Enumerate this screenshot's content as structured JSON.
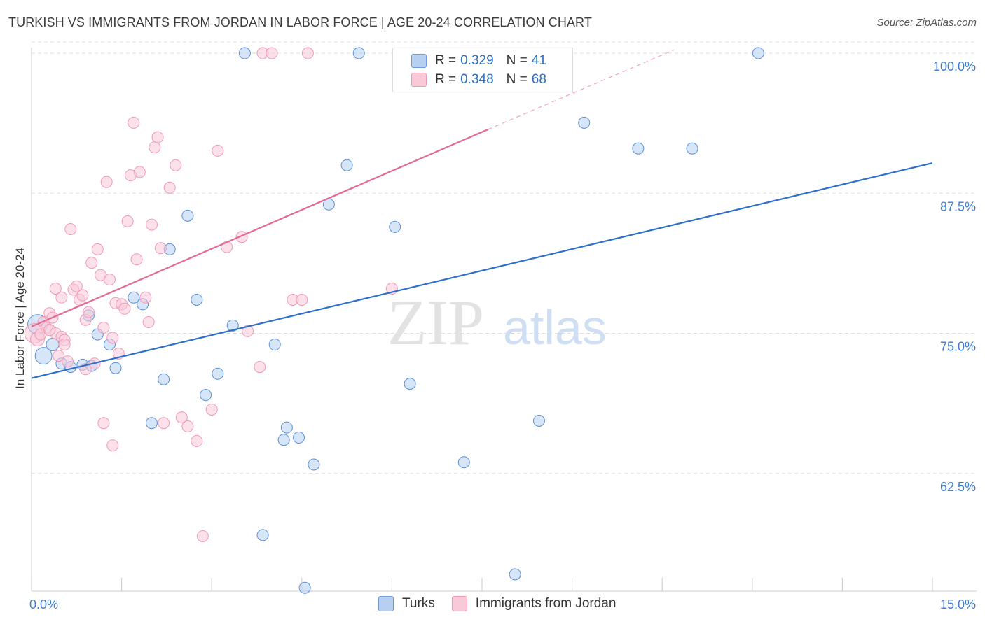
{
  "title": "TURKISH VS IMMIGRANTS FROM JORDAN IN LABOR FORCE | AGE 20-24 CORRELATION CHART",
  "source": "Source: ZipAtlas.com",
  "watermark": {
    "zip": "ZIP",
    "atlas": "atlas"
  },
  "legend": {
    "r_label": "R =",
    "n_label": "N =",
    "rows": [
      {
        "r": "0.329",
        "n": "41",
        "color": "#aac6f0"
      },
      {
        "r": "0.348",
        "n": "68",
        "color": "#f7b7cb"
      }
    ]
  },
  "bottom_legend": [
    {
      "label": "Turks",
      "color": "#aac6f0"
    },
    {
      "label": "Immigrants from Jordan",
      "color": "#f7b7cb"
    }
  ],
  "chart_data": {
    "type": "scatter",
    "title": "TURKISH VS IMMIGRANTS FROM JORDAN IN LABOR FORCE | AGE 20-24 CORRELATION CHART",
    "xlabel": "",
    "ylabel": "In Labor Force | Age 20-24",
    "xlim": [
      0,
      15
    ],
    "ylim": [
      52,
      101
    ],
    "x_tick_labels": [
      "0.0%",
      "15.0%"
    ],
    "y_ticks": [
      62.5,
      75.0,
      87.5,
      100.0
    ],
    "y_tick_labels": [
      "62.5%",
      "75.0%",
      "87.5%",
      "100.0%"
    ],
    "grid": true,
    "legend_position": "top-center",
    "series": [
      {
        "name": "Turks",
        "color": "#5b8fd8",
        "fill": "#b7d0f2",
        "trend": {
          "x": [
            0,
            15
          ],
          "y": [
            71.0,
            90.2
          ],
          "color": "#2f6fcc"
        },
        "points": [
          [
            0.1,
            75.8,
            14
          ],
          [
            0.2,
            73.0,
            12
          ],
          [
            0.35,
            74.0,
            9
          ],
          [
            0.5,
            72.3,
            8
          ],
          [
            0.85,
            72.2,
            8
          ],
          [
            0.95,
            76.6,
            8
          ],
          [
            1.1,
            74.9,
            8
          ],
          [
            1.3,
            74.0,
            8
          ],
          [
            1.4,
            71.9,
            8
          ],
          [
            1.7,
            78.2,
            8
          ],
          [
            1.85,
            77.6,
            8
          ],
          [
            2.0,
            67.0,
            8
          ],
          [
            2.2,
            70.9,
            8
          ],
          [
            2.3,
            82.5,
            8
          ],
          [
            2.6,
            85.5,
            8
          ],
          [
            2.75,
            78.0,
            8
          ],
          [
            2.9,
            69.5,
            8
          ],
          [
            3.1,
            71.4,
            8
          ],
          [
            3.35,
            75.7,
            8
          ],
          [
            3.55,
            100.0,
            8
          ],
          [
            3.85,
            57.0,
            8
          ],
          [
            4.05,
            74.0,
            8
          ],
          [
            4.2,
            65.5,
            8
          ],
          [
            4.25,
            66.6,
            8
          ],
          [
            4.45,
            65.7,
            8
          ],
          [
            4.95,
            86.5,
            8
          ],
          [
            5.25,
            90.0,
            8
          ],
          [
            4.7,
            63.3,
            8
          ],
          [
            4.55,
            52.3,
            8
          ],
          [
            5.45,
            100.0,
            8
          ],
          [
            6.05,
            84.5,
            8
          ],
          [
            6.3,
            70.5,
            8
          ],
          [
            7.2,
            63.5,
            8
          ],
          [
            8.05,
            53.5,
            8
          ],
          [
            8.45,
            67.2,
            8
          ],
          [
            9.2,
            93.8,
            8
          ],
          [
            10.1,
            91.5,
            8
          ],
          [
            11.0,
            91.5,
            8
          ],
          [
            12.1,
            100.0,
            8
          ],
          [
            0.65,
            72.0,
            8
          ],
          [
            1.0,
            72.1,
            8
          ]
        ]
      },
      {
        "name": "Immigrants from Jordan",
        "color": "#ee9ab5",
        "fill": "#f9c9d8",
        "trend": {
          "x": [
            0,
            7.6
          ],
          "y": [
            75.6,
            93.2
          ],
          "color": "#e36a93"
        },
        "trend_extension": {
          "x": [
            7.6,
            10.7
          ],
          "y": [
            93.2,
            100.3
          ]
        },
        "points": [
          [
            0.05,
            75.0,
            14
          ],
          [
            0.1,
            74.5,
            10
          ],
          [
            0.2,
            76.0,
            8
          ],
          [
            0.25,
            75.5,
            8
          ],
          [
            0.3,
            76.8,
            8
          ],
          [
            0.35,
            76.4,
            8
          ],
          [
            0.4,
            75.0,
            8
          ],
          [
            0.45,
            73.0,
            8
          ],
          [
            0.5,
            74.7,
            8
          ],
          [
            0.5,
            78.2,
            8
          ],
          [
            0.55,
            74.4,
            8
          ],
          [
            0.6,
            72.5,
            8
          ],
          [
            0.65,
            84.3,
            8
          ],
          [
            0.7,
            78.9,
            8
          ],
          [
            0.75,
            79.2,
            8
          ],
          [
            0.8,
            78.0,
            8
          ],
          [
            0.85,
            78.4,
            8
          ],
          [
            0.9,
            76.2,
            8
          ],
          [
            0.95,
            76.9,
            8
          ],
          [
            1.0,
            81.3,
            8
          ],
          [
            1.05,
            72.3,
            8
          ],
          [
            1.1,
            82.5,
            8
          ],
          [
            1.15,
            80.2,
            8
          ],
          [
            1.2,
            67.0,
            8
          ],
          [
            1.25,
            88.5,
            8
          ],
          [
            1.3,
            79.8,
            8
          ],
          [
            1.35,
            65.0,
            8
          ],
          [
            1.4,
            77.7,
            8
          ],
          [
            1.45,
            73.2,
            8
          ],
          [
            1.5,
            77.6,
            8
          ],
          [
            1.55,
            77.2,
            8
          ],
          [
            1.6,
            85.0,
            8
          ],
          [
            1.65,
            89.1,
            8
          ],
          [
            1.7,
            93.8,
            8
          ],
          [
            1.75,
            81.6,
            8
          ],
          [
            1.8,
            89.4,
            8
          ],
          [
            1.9,
            78.2,
            8
          ],
          [
            1.95,
            76.0,
            8
          ],
          [
            2.0,
            84.7,
            8
          ],
          [
            2.05,
            91.6,
            8
          ],
          [
            2.1,
            92.5,
            8
          ],
          [
            2.15,
            82.6,
            8
          ],
          [
            2.2,
            67.0,
            8
          ],
          [
            2.3,
            88.0,
            8
          ],
          [
            2.4,
            90.0,
            8
          ],
          [
            2.5,
            67.5,
            8
          ],
          [
            2.6,
            66.7,
            8
          ],
          [
            2.75,
            65.4,
            8
          ],
          [
            2.85,
            56.9,
            8
          ],
          [
            3.0,
            68.2,
            8
          ],
          [
            3.1,
            91.3,
            8
          ],
          [
            3.25,
            82.7,
            8
          ],
          [
            3.5,
            83.6,
            8
          ],
          [
            3.6,
            75.2,
            8
          ],
          [
            3.8,
            72.0,
            8
          ],
          [
            3.85,
            100.0,
            8
          ],
          [
            4.0,
            100.0,
            8
          ],
          [
            4.35,
            78.0,
            8
          ],
          [
            4.5,
            78.0,
            8
          ],
          [
            4.6,
            100.0,
            8
          ],
          [
            6.0,
            79.0,
            8
          ],
          [
            0.15,
            74.9,
            8
          ],
          [
            0.4,
            79.0,
            8
          ],
          [
            0.9,
            71.8,
            8
          ],
          [
            1.2,
            75.5,
            8
          ],
          [
            1.35,
            74.6,
            8
          ],
          [
            0.3,
            75.3,
            8
          ],
          [
            0.55,
            74.0,
            8
          ]
        ]
      }
    ]
  }
}
